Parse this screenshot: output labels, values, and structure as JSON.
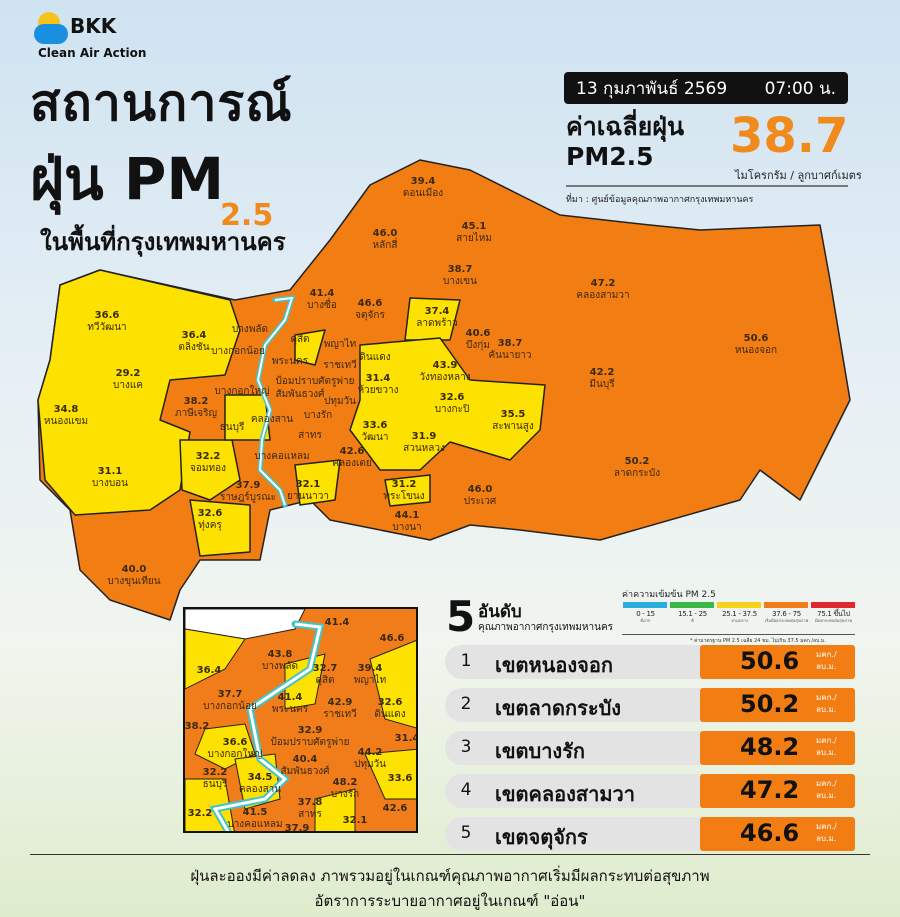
{
  "brand": {
    "logo_text": "BKK",
    "tagline": "Clean Air Action"
  },
  "title": {
    "line1": "สถานการณ์",
    "line2_main": "ฝุ่น PM",
    "line2_sub": "2.5",
    "line3": "ในพื้นที่กรุงเทพมหานคร"
  },
  "header": {
    "date": "13 กุมภาพันธ์ 2569",
    "time": "07:00 น.",
    "avg_label_1": "ค่าเฉลี่ยฝุ่น",
    "avg_label_2": "PM2.5",
    "avg_value": "38.7",
    "avg_unit": "ไมโครกรัม / ลูกบาศก์เมตร",
    "source": "ที่มา : ศูนย์ข้อมูลคุณภาพอากาศกรุงเทพมหานคร"
  },
  "level_colors": {
    "yellow": "#fde100",
    "orange": "#f27d12",
    "accent": "#f08a1c",
    "river": "#43c4c9"
  },
  "map": {
    "districts": [
      {
        "name": "ดอนเมือง",
        "value": "39.4",
        "level": "orange"
      },
      {
        "name": "หลักสี่",
        "value": "46.0",
        "level": "orange"
      },
      {
        "name": "สายไหม",
        "value": "45.1",
        "level": "orange"
      },
      {
        "name": "บางเขน",
        "value": "38.7",
        "level": "orange"
      },
      {
        "name": "คลองสามวา",
        "value": "47.2",
        "level": "orange"
      },
      {
        "name": "หนองจอก",
        "value": "50.6",
        "level": "orange"
      },
      {
        "name": "ทวีวัฒนา",
        "value": "36.6",
        "level": "yellow"
      },
      {
        "name": "ตลิ่งชัน",
        "value": "36.4",
        "level": "yellow"
      },
      {
        "name": "หนองแขม",
        "value": "34.8",
        "level": "yellow"
      },
      {
        "name": "บางแค",
        "value": "29.2",
        "level": "yellow"
      },
      {
        "name": "ภาษีเจริญ",
        "value": "38.2",
        "level": "orange"
      },
      {
        "name": "บางพลัด",
        "value": "",
        "level": "orange"
      },
      {
        "name": "บางกอกน้อย",
        "value": "",
        "level": "orange"
      },
      {
        "name": "ดุสิต",
        "value": "",
        "level": "yellow"
      },
      {
        "name": "พระนคร",
        "value": "",
        "level": "orange"
      },
      {
        "name": "ป้อมปราบศัตรูพ่าย",
        "value": "",
        "level": "yellow"
      },
      {
        "name": "สัมพันธวงศ์",
        "value": "",
        "level": "orange"
      },
      {
        "name": "บางกอกใหญ่",
        "value": "",
        "level": "yellow"
      },
      {
        "name": "ธนบุรี",
        "value": "",
        "level": "yellow"
      },
      {
        "name": "คลองสาน",
        "value": "",
        "level": "yellow"
      },
      {
        "name": "บางรัก",
        "value": "",
        "level": "orange"
      },
      {
        "name": "สาทร",
        "value": "",
        "level": "orange"
      },
      {
        "name": "บางคอแหลม",
        "value": "",
        "level": "orange"
      },
      {
        "name": "บางซื่อ",
        "value": "41.4",
        "level": "orange"
      },
      {
        "name": "จตุจักร",
        "value": "46.6",
        "level": "orange"
      },
      {
        "name": "ลาดพร้าว",
        "value": "37.4",
        "level": "yellow"
      },
      {
        "name": "พญาไท",
        "value": "",
        "level": "orange"
      },
      {
        "name": "ราชเทวี",
        "value": "",
        "level": "orange"
      },
      {
        "name": "ดินแดง",
        "value": "",
        "level": "yellow"
      },
      {
        "name": "ห้วยขวาง",
        "value": "31.4",
        "level": "yellow"
      },
      {
        "name": "วังทองหลาง",
        "value": "43.9",
        "level": "orange"
      },
      {
        "name": "บึงกุ่ม",
        "value": "40.6",
        "level": "orange"
      },
      {
        "name": "คันนายาว",
        "value": "38.7",
        "level": "orange"
      },
      {
        "name": "มีนบุรี",
        "value": "42.2",
        "level": "orange"
      },
      {
        "name": "บางกะปิ",
        "value": "32.6",
        "level": "yellow"
      },
      {
        "name": "สะพานสูง",
        "value": "35.5",
        "level": "yellow"
      },
      {
        "name": "วัฒนา",
        "value": "33.6",
        "level": "yellow"
      },
      {
        "name": "สวนหลวง",
        "value": "31.9",
        "level": "yellow"
      },
      {
        "name": "คลองเตย",
        "value": "42.6",
        "level": "orange"
      },
      {
        "name": "ปทุมวัน",
        "value": "",
        "level": "orange"
      },
      {
        "name": "ยานนาวา",
        "value": "32.1",
        "level": "yellow"
      },
      {
        "name": "ราษฎร์บูรณะ",
        "value": "37.9",
        "level": "orange"
      },
      {
        "name": "จอมทอง",
        "value": "32.2",
        "level": "yellow"
      },
      {
        "name": "บางบอน",
        "value": "31.1",
        "level": "yellow"
      },
      {
        "name": "พระโขนง",
        "value": "31.2",
        "level": "yellow"
      },
      {
        "name": "ประเวศ",
        "value": "46.0",
        "level": "orange"
      },
      {
        "name": "ลาดกระบัง",
        "value": "50.2",
        "level": "orange"
      },
      {
        "name": "บางนา",
        "value": "44.1",
        "level": "orange"
      },
      {
        "name": "ทุ่งครุ",
        "value": "32.6",
        "level": "yellow"
      },
      {
        "name": "บางขุนเทียน",
        "value": "40.0",
        "level": "orange"
      }
    ]
  },
  "inset": {
    "districts": [
      {
        "name": "",
        "value": "41.4"
      },
      {
        "name": "",
        "value": "46.6"
      },
      {
        "name": "",
        "value": "36.4"
      },
      {
        "name": "บางพลัด",
        "value": "43.8"
      },
      {
        "name": "บางกอกน้อย",
        "value": "37.7"
      },
      {
        "name": "ดุสิต",
        "value": "32.7"
      },
      {
        "name": "พญาไท",
        "value": "39.4"
      },
      {
        "name": "ดินแดง",
        "value": "32.6"
      },
      {
        "name": "พระนคร",
        "value": "41.4"
      },
      {
        "name": "ราชเทวี",
        "value": "42.9"
      },
      {
        "name": "ป้อมปราบศัตรูพ่าย",
        "value": "32.9"
      },
      {
        "name": "",
        "value": "31.4"
      },
      {
        "name": "",
        "value": "38.2"
      },
      {
        "name": "บางกอกใหญ่",
        "value": "36.6"
      },
      {
        "name": "สัมพันธวงศ์",
        "value": "40.4"
      },
      {
        "name": "ปทุมวัน",
        "value": "44.2"
      },
      {
        "name": "",
        "value": "33.6"
      },
      {
        "name": "คลองสาน",
        "value": "34.5"
      },
      {
        "name": "ธนบุรี",
        "value": "32.2"
      },
      {
        "name": "บางรัก",
        "value": "48.2"
      },
      {
        "name": "สาทร",
        "value": "37.8"
      },
      {
        "name": "",
        "value": "32.2"
      },
      {
        "name": "",
        "value": "42.6"
      },
      {
        "name": "บางคอแหลม",
        "value": "41.5"
      },
      {
        "name": "",
        "value": "32.1"
      },
      {
        "name": "",
        "value": "37.9"
      }
    ]
  },
  "ranking": {
    "big_number": "5",
    "title": "อันดับ",
    "subtitle": "คุณภาพอากาศกรุงเทพมหานคร",
    "unit": "มคก./ลบ.ม.",
    "items": [
      {
        "rank": "1",
        "name": "เขตหนองจอก",
        "value": "50.6"
      },
      {
        "rank": "2",
        "name": "เขตลาดกระบัง",
        "value": "50.2"
      },
      {
        "rank": "3",
        "name": "เขตบางรัก",
        "value": "48.2"
      },
      {
        "rank": "4",
        "name": "เขตคลองสามวา",
        "value": "47.2"
      },
      {
        "rank": "5",
        "name": "เขตจตุจักร",
        "value": "46.6"
      }
    ]
  },
  "legend": {
    "title": "ค่าความเข้มข้น  PM 2.5",
    "note": "* ค่ามาตรฐาน PM 2.5 เฉลี่ย 24 ชม. ไม่เกิน 37.5 มคก./ลบ.ม.",
    "levels": [
      {
        "range": "0 - 15",
        "label": "ดีมาก",
        "color": "#29aee0"
      },
      {
        "range": "15.1 - 25",
        "label": "ดี",
        "color": "#3cb84a"
      },
      {
        "range": "25.1 - 37.5",
        "label": "ปานกลาง",
        "color": "#f7d31a"
      },
      {
        "range": "37.6 - 75",
        "label": "เริ่มมีผลกระทบต่อสุขภาพ",
        "color": "#f07c1a"
      },
      {
        "range": "75.1 ขึ้นไป",
        "label": "มีผลกระทบต่อสุขภาพ",
        "color": "#e0282e"
      }
    ]
  },
  "footer": {
    "line1": "ฝุ่นละอองมีค่าลดลง ภาพรวมอยู่ในเกณฑ์คุณภาพอากาศเริ่มมีผลกระทบต่อสุขภาพ",
    "line2": "อัตราการระบายอากาศอยู่ในเกณฑ์ \"อ่อน\""
  }
}
